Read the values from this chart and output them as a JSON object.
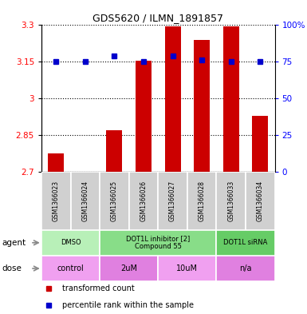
{
  "title": "GDS5620 / ILMN_1891857",
  "samples": [
    "GSM1366023",
    "GSM1366024",
    "GSM1366025",
    "GSM1366026",
    "GSM1366027",
    "GSM1366028",
    "GSM1366033",
    "GSM1366034"
  ],
  "red_bar_heights": [
    2.775,
    2.7,
    2.87,
    3.155,
    3.295,
    3.24,
    3.295,
    2.93
  ],
  "blue_dot_values": [
    75,
    75,
    79,
    75,
    79,
    76,
    75,
    75
  ],
  "ylim_left": [
    2.7,
    3.3
  ],
  "ylim_right": [
    0,
    100
  ],
  "yticks_left": [
    2.7,
    2.85,
    3.0,
    3.15,
    3.3
  ],
  "yticks_right": [
    0,
    25,
    50,
    75,
    100
  ],
  "ytick_labels_left": [
    "2.7",
    "2.85",
    "3",
    "3.15",
    "3.3"
  ],
  "ytick_labels_right": [
    "0",
    "25",
    "50",
    "75",
    "100%"
  ],
  "bar_color": "#cc0000",
  "dot_color": "#0000cc",
  "agent_groups": [
    {
      "label": "DMSO",
      "start": 0,
      "end": 2,
      "color": "#b8f0b8"
    },
    {
      "label": "DOT1L inhibitor [2]\nCompound 55",
      "start": 2,
      "end": 6,
      "color": "#88dd88"
    },
    {
      "label": "DOT1L siRNA",
      "start": 6,
      "end": 8,
      "color": "#66cc66"
    }
  ],
  "dose_groups": [
    {
      "label": "control",
      "start": 0,
      "end": 2,
      "color": "#f0a0f0"
    },
    {
      "label": "2uM",
      "start": 2,
      "end": 4,
      "color": "#e080e0"
    },
    {
      "label": "10uM",
      "start": 4,
      "end": 6,
      "color": "#f0a0f0"
    },
    {
      "label": "n/a",
      "start": 6,
      "end": 8,
      "color": "#e080e0"
    }
  ],
  "legend_red_label": "transformed count",
  "legend_blue_label": "percentile rank within the sample",
  "sample_bg": "#d0d0d0",
  "bar_width": 0.55
}
